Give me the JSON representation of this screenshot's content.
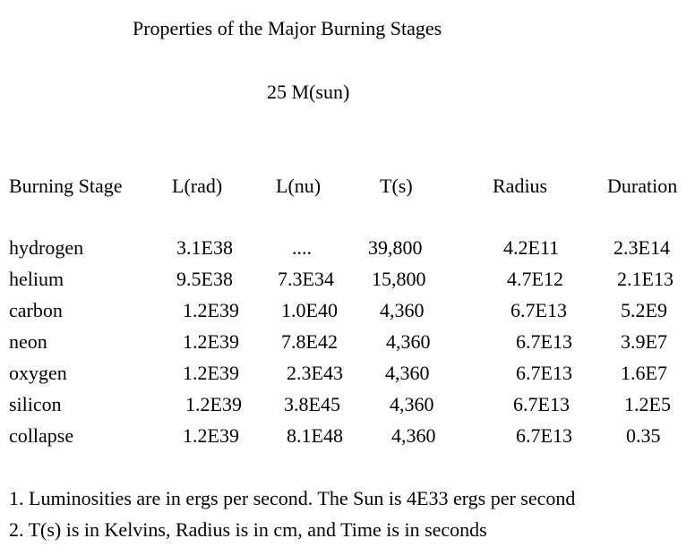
{
  "title": "Properties of the Major Burning Stages",
  "subtitle": "25 M(sun)",
  "table": {
    "headers": [
      "Burning Stage",
      "L(rad)",
      "L(nu)",
      "T(s)",
      "Radius",
      "Duration"
    ],
    "rows": [
      [
        "hydrogen",
        "3.1E38",
        "....",
        "39,800",
        "4.2E11",
        "2.3E14"
      ],
      [
        "helium",
        "9.5E38",
        "7.3E34",
        "15,800",
        "4.7E12",
        "2.1E13"
      ],
      [
        "carbon",
        "1.2E39",
        "1.0E40",
        "4,360",
        "6.7E13",
        "5.2E9"
      ],
      [
        "neon",
        "1.2E39",
        "7.8E42",
        "4,360",
        "6.7E13",
        "3.9E7"
      ],
      [
        "oxygen",
        "1.2E39",
        "2.3E43",
        "4,360",
        "6.7E13",
        "1.6E7"
      ],
      [
        "silicon",
        "1.2E39",
        "3.8E45",
        "4,360",
        "6.7E13",
        "1.2E5"
      ],
      [
        "collapse",
        "1.2E39",
        "8.1E48",
        "4,360",
        "6.7E13",
        "0.35"
      ]
    ]
  },
  "notes": [
    "1.  Luminosities are in ergs per second. The Sun is 4E33 ergs per second",
    "2.  T(s) is in Kelvins, Radius is in cm, and Time is in seconds"
  ]
}
